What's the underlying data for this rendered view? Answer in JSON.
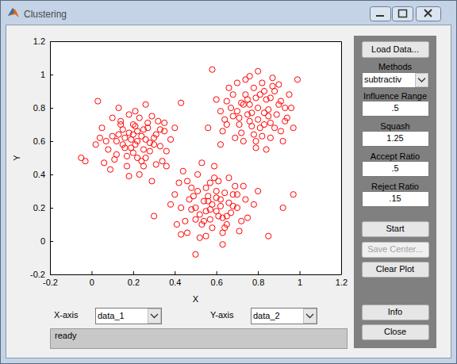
{
  "window": {
    "title": "Clustering",
    "load_button": "Load Data...",
    "methods": {
      "label": "Methods",
      "value": "subtractiv"
    },
    "parameters": [
      {
        "label": "Influence Range",
        "value": ".5"
      },
      {
        "label": "Squash",
        "value": "1.25"
      },
      {
        "label": "Accept Ratio",
        "value": ".5"
      },
      {
        "label": "Reject Ratio",
        "value": ".15"
      }
    ],
    "actions": [
      "Start",
      "Save Center...",
      "Clear Plot"
    ],
    "footer_buttons": [
      "Info",
      "Close"
    ],
    "axis_selectors": [
      {
        "label": "X-axis",
        "value": "data_1"
      },
      {
        "label": "Y-axis",
        "value": "data_2"
      }
    ],
    "status": "ready"
  },
  "chart_data": {
    "type": "scatter",
    "x_label": "X",
    "y_label": "Y",
    "xlim": [
      -0.2,
      1.2
    ],
    "ylim": [
      -0.2,
      1.2
    ],
    "xticks": [
      -0.2,
      0,
      0.2,
      0.4,
      0.6,
      0.8,
      1,
      1.2
    ],
    "yticks": [
      -0.2,
      0,
      0.2,
      0.4,
      0.6,
      0.8,
      1,
      1.2
    ],
    "color": "#ff0000",
    "marker": "circle",
    "x": [
      0.22,
      0.18,
      0.25,
      0.3,
      0.15,
      0.2,
      0.27,
      0.12,
      0.33,
      0.24,
      0.1,
      0.17,
      0.29,
      0.35,
      0.21,
      0.14,
      0.26,
      0.31,
      0.19,
      0.08,
      0.05,
      0.23,
      0.36,
      0.13,
      0.28,
      0.16,
      0.32,
      0.22,
      0.09,
      0.38,
      0.02,
      0.2,
      0.26,
      0.11,
      0.34,
      0.18,
      0.24,
      0.15,
      0.29,
      0.07,
      -0.05,
      -0.03,
      0.03,
      0.43,
      0.4,
      0.21,
      0.27,
      0.12,
      0.17,
      0.31,
      0.25,
      0.19,
      0.14,
      0.23,
      0.36,
      0.06,
      0.28,
      0.2,
      0.33,
      0.16,
      0.1,
      0.25,
      0.3,
      0.22,
      0.13,
      0.18,
      0.26,
      0.35,
      0.04,
      0.21,
      0.8,
      0.75,
      0.85,
      0.7,
      0.9,
      0.78,
      0.83,
      0.72,
      0.88,
      0.76,
      0.68,
      0.82,
      0.93,
      0.65,
      0.86,
      0.79,
      0.74,
      0.91,
      0.62,
      0.84,
      0.6,
      0.96,
      0.77,
      0.71,
      0.87,
      0.81,
      0.66,
      0.95,
      0.73,
      0.89,
      0.58,
      0.99,
      0.56,
      0.79,
      0.84,
      0.69,
      0.92,
      0.63,
      0.76,
      0.86,
      0.8,
      0.74,
      0.88,
      0.67,
      0.83,
      0.78,
      0.91,
      0.71,
      0.85,
      0.97,
      0.62,
      0.94,
      0.76,
      0.82,
      0.7,
      0.87,
      0.8,
      0.73,
      0.65,
      0.9,
      0.77,
      0.83,
      0.68,
      0.86,
      0.79,
      0.72,
      0.93,
      0.75,
      0.81,
      0.64,
      0.58,
      0.55,
      0.62,
      0.5,
      0.65,
      0.6,
      0.53,
      0.68,
      0.47,
      0.63,
      0.45,
      0.57,
      0.7,
      0.52,
      0.66,
      0.48,
      0.61,
      0.74,
      0.43,
      0.56,
      0.4,
      0.64,
      0.51,
      0.72,
      0.59,
      0.46,
      0.69,
      0.54,
      0.78,
      0.42,
      0.3,
      0.92,
      0.97,
      0.85,
      0.5,
      0.53,
      0.63,
      0.44,
      0.8,
      0.6,
      0.57,
      0.49,
      0.66,
      0.61,
      0.38,
      0.71,
      0.55,
      0.64,
      0.52,
      0.75,
      0.48,
      0.58,
      0.67,
      0.43,
      0.62,
      0.54,
      0.7,
      0.56,
      0.46,
      0.6,
      0.65,
      0.51,
      0.59,
      0.73,
      0.41,
      0.63,
      0.55,
      0.68,
      0.5,
      0.57
    ],
    "values": [
      0.6,
      0.65,
      0.55,
      0.62,
      0.58,
      0.7,
      0.68,
      0.52,
      0.57,
      0.48,
      0.63,
      0.45,
      0.75,
      0.66,
      0.78,
      0.72,
      0.5,
      0.46,
      0.56,
      0.55,
      0.68,
      0.4,
      0.54,
      0.8,
      0.59,
      0.62,
      0.72,
      0.66,
      0.43,
      0.61,
      0.58,
      0.53,
      0.82,
      0.49,
      0.48,
      0.76,
      0.63,
      0.67,
      0.36,
      0.6,
      0.5,
      0.48,
      0.84,
      0.83,
      0.68,
      0.58,
      0.71,
      0.6,
      0.51,
      0.64,
      0.45,
      0.61,
      0.7,
      0.74,
      0.45,
      0.47,
      0.54,
      0.64,
      0.67,
      0.56,
      0.74,
      0.67,
      0.58,
      0.5,
      0.64,
      0.39,
      0.61,
      0.71,
      0.62,
      0.69,
      0.8,
      0.85,
      0.75,
      0.78,
      0.82,
      0.92,
      0.7,
      0.65,
      0.9,
      0.72,
      0.88,
      0.95,
      0.72,
      0.7,
      0.62,
      0.6,
      0.97,
      0.66,
      0.78,
      0.85,
      0.85,
      0.8,
      0.77,
      0.74,
      0.98,
      0.68,
      0.92,
      0.88,
      0.82,
      0.76,
      1.03,
      0.97,
      0.68,
      0.56,
      0.55,
      0.62,
      0.6,
      0.66,
      0.99,
      0.86,
      0.73,
      0.88,
      0.68,
      0.8,
      0.9,
      0.64,
      0.84,
      0.7,
      0.79,
      0.68,
      0.58,
      0.74,
      0.82,
      0.63,
      0.95,
      0.93,
      1.02,
      0.6,
      0.84,
      0.94,
      0.69,
      0.77,
      0.75,
      0.71,
      0.86,
      0.83,
      0.8,
      0.76,
      0.88,
      0.73,
      0.22,
      0.18,
      0.25,
      0.2,
      0.15,
      0.3,
      0.1,
      0.28,
      0.25,
      0.05,
      0.12,
      0.35,
      0.2,
      0.02,
      0.38,
      0.32,
      0.15,
      0.25,
      0.2,
      0.27,
      0.28,
      0.08,
      0.4,
      0.12,
      0.45,
      0.05,
      0.33,
      0.24,
      0.22,
      0.35,
      0.15,
      0.2,
      0.28,
      0.03,
      -0.08,
      0.47,
      -0.02,
      0.42,
      0.3,
      0.18,
      0.13,
      0.27,
      0.23,
      0.36,
      0.22,
      0.06,
      0.32,
      0.29,
      0.16,
      0.14,
      0.19,
      0.08,
      0.17,
      0.04,
      0.21,
      0.12,
      0.28,
      0.24,
      0.36,
      0.26,
      0.1,
      0.3,
      0.38,
      0.33,
      0.1,
      0.14,
      0.03,
      0.21,
      0.13,
      0.19
    ]
  }
}
